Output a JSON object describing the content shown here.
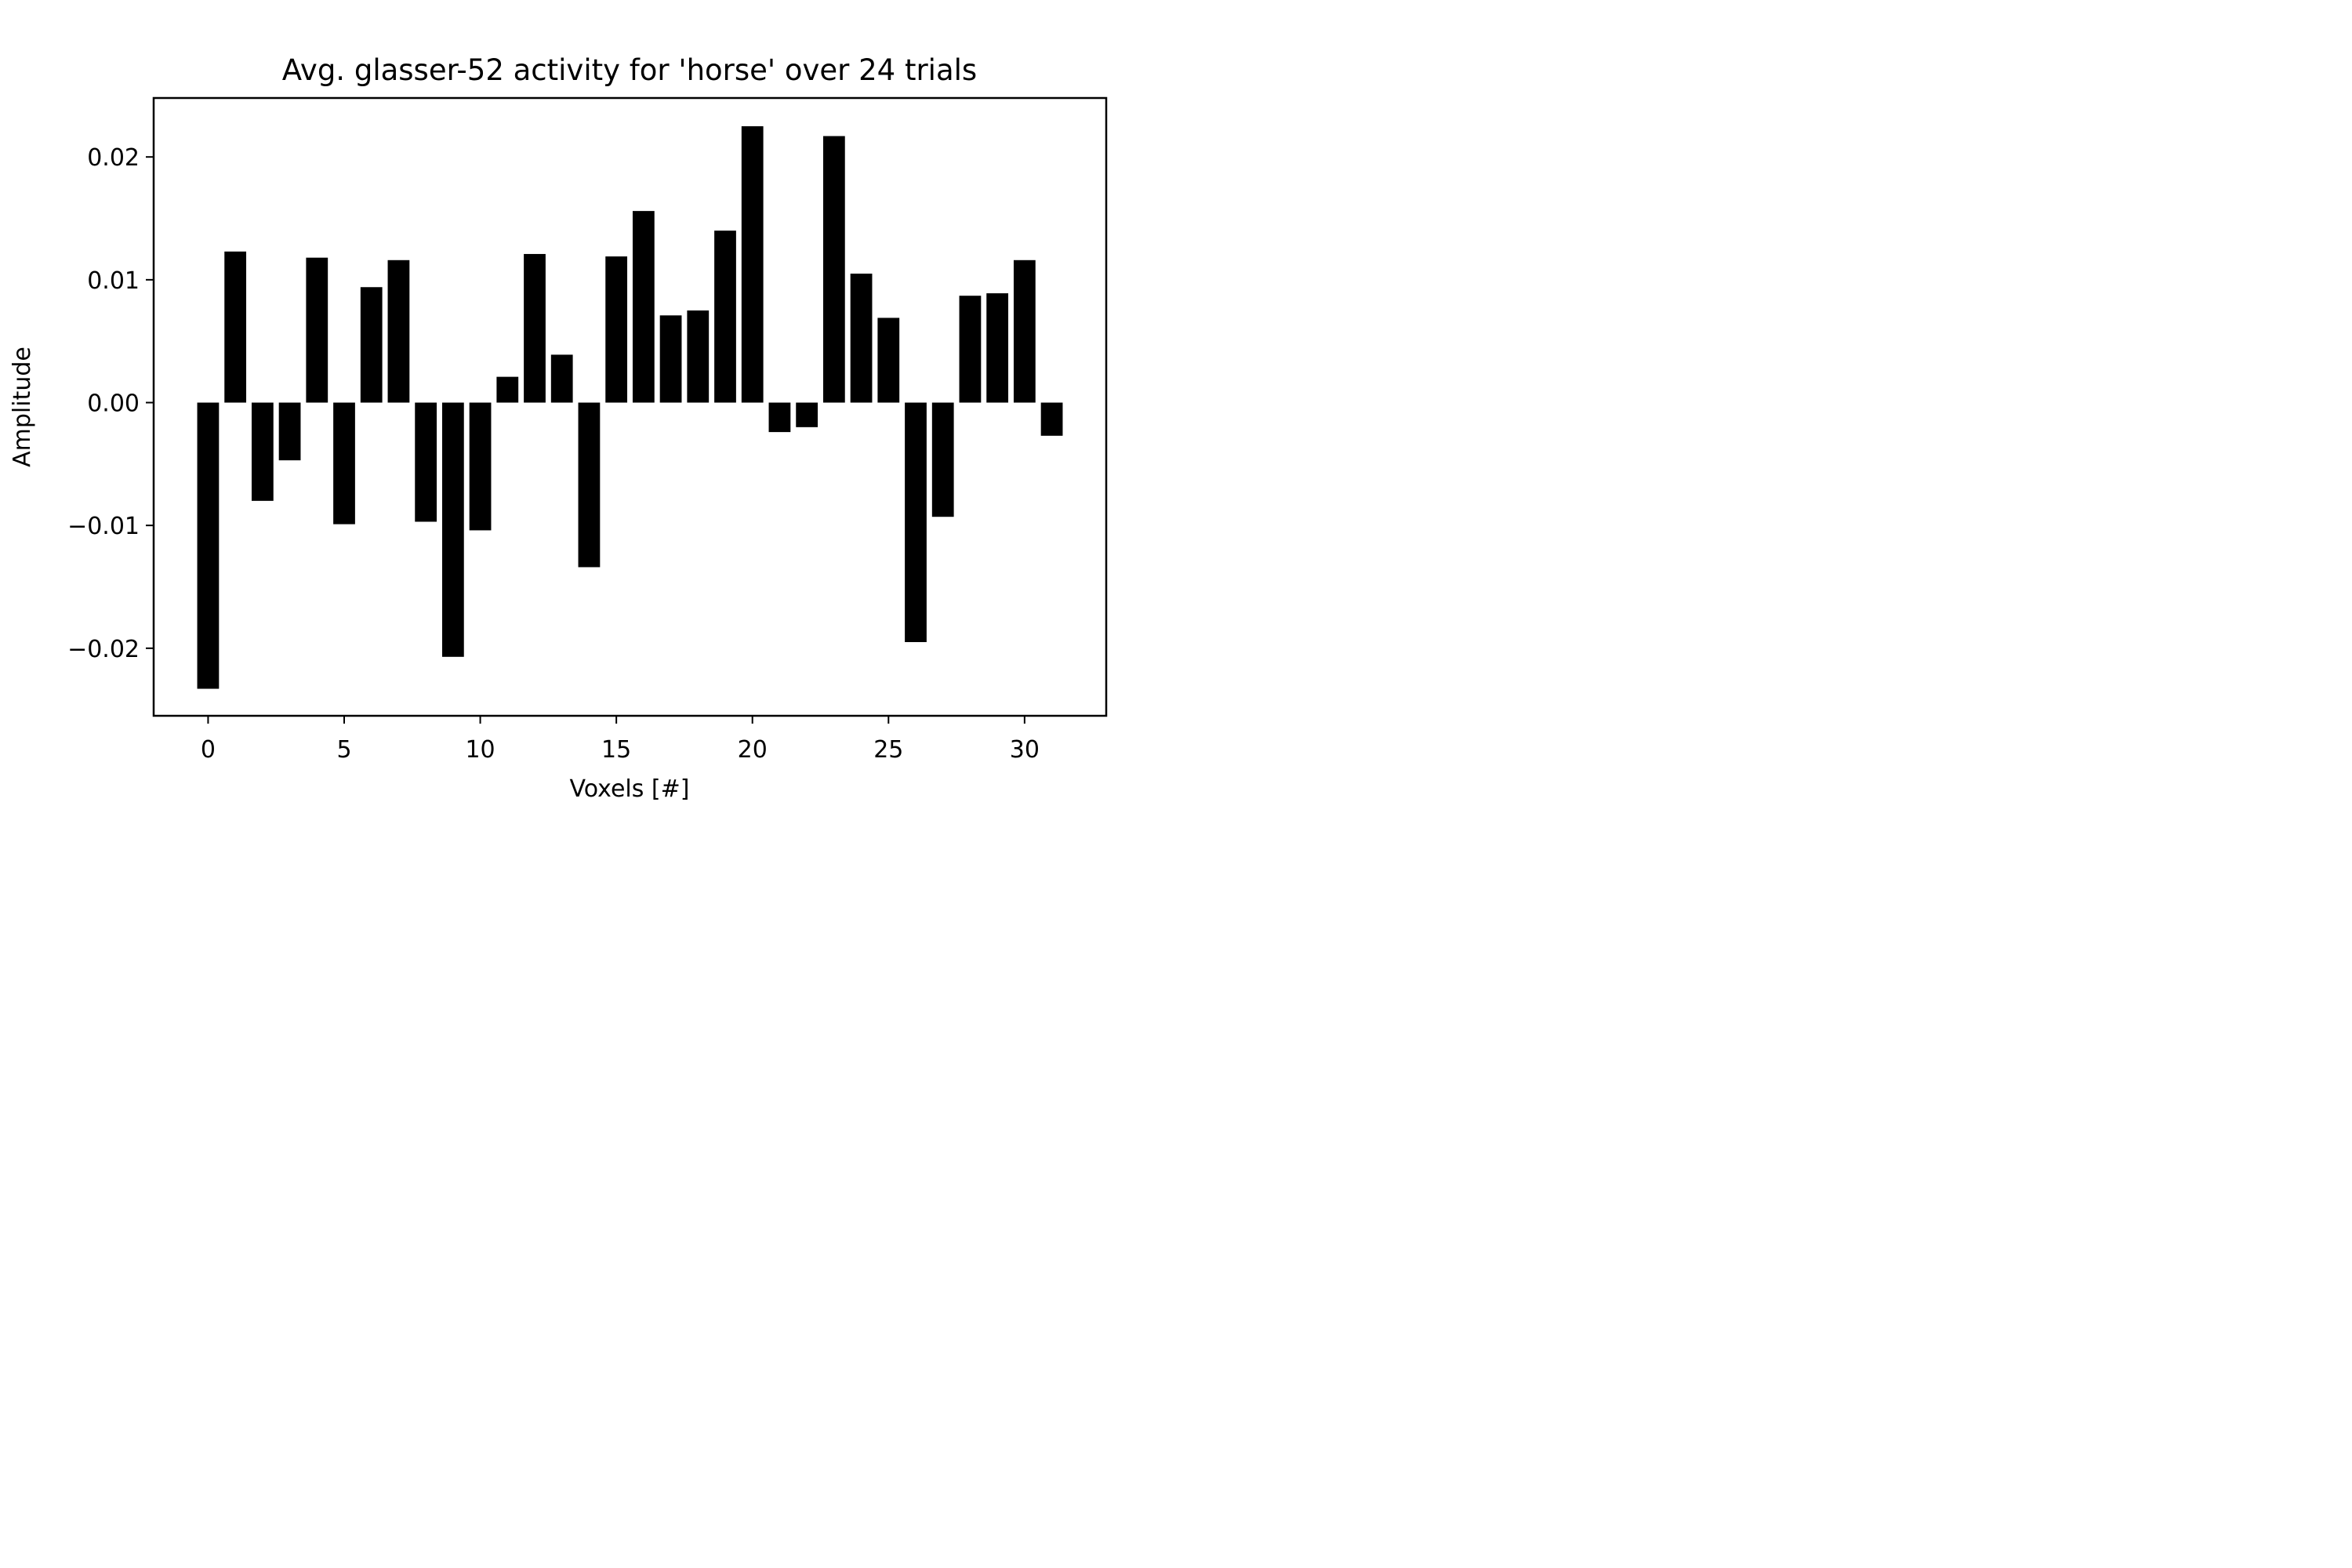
{
  "chart_data": {
    "type": "bar",
    "title": "Avg. glasser-52 activity for 'horse' over 24 trials",
    "xlabel": "Voxels [#]",
    "ylabel": "Amplitude",
    "x": [
      0,
      1,
      2,
      3,
      4,
      5,
      6,
      7,
      8,
      9,
      10,
      11,
      12,
      13,
      14,
      15,
      16,
      17,
      18,
      19,
      20,
      21,
      22,
      23,
      24,
      25,
      26,
      27,
      28,
      29,
      30,
      31
    ],
    "values": [
      -0.0233,
      0.0123,
      -0.008,
      -0.0047,
      0.0118,
      -0.0099,
      0.0094,
      0.0116,
      -0.0097,
      -0.0207,
      -0.0104,
      0.0021,
      0.0121,
      0.0039,
      -0.0134,
      0.0119,
      0.0156,
      0.0071,
      0.0075,
      0.014,
      0.0225,
      -0.0024,
      -0.002,
      0.0217,
      0.0105,
      0.0069,
      -0.0195,
      -0.0093,
      0.0087,
      0.0089,
      0.0116,
      -0.0027
    ],
    "xlim": [
      -2,
      33
    ],
    "ylim": [
      -0.0255,
      0.0248
    ],
    "xticks": [
      0,
      5,
      10,
      15,
      20,
      25,
      30
    ],
    "xtick_labels": [
      "0",
      "5",
      "10",
      "15",
      "20",
      "25",
      "30"
    ],
    "yticks": [
      -0.02,
      -0.01,
      0.0,
      0.01,
      0.02
    ],
    "ytick_labels": [
      "−0.02",
      "−0.01",
      "0.00",
      "0.01",
      "0.02"
    ],
    "bar_color": "#000000",
    "grid": false,
    "legend": false
  }
}
